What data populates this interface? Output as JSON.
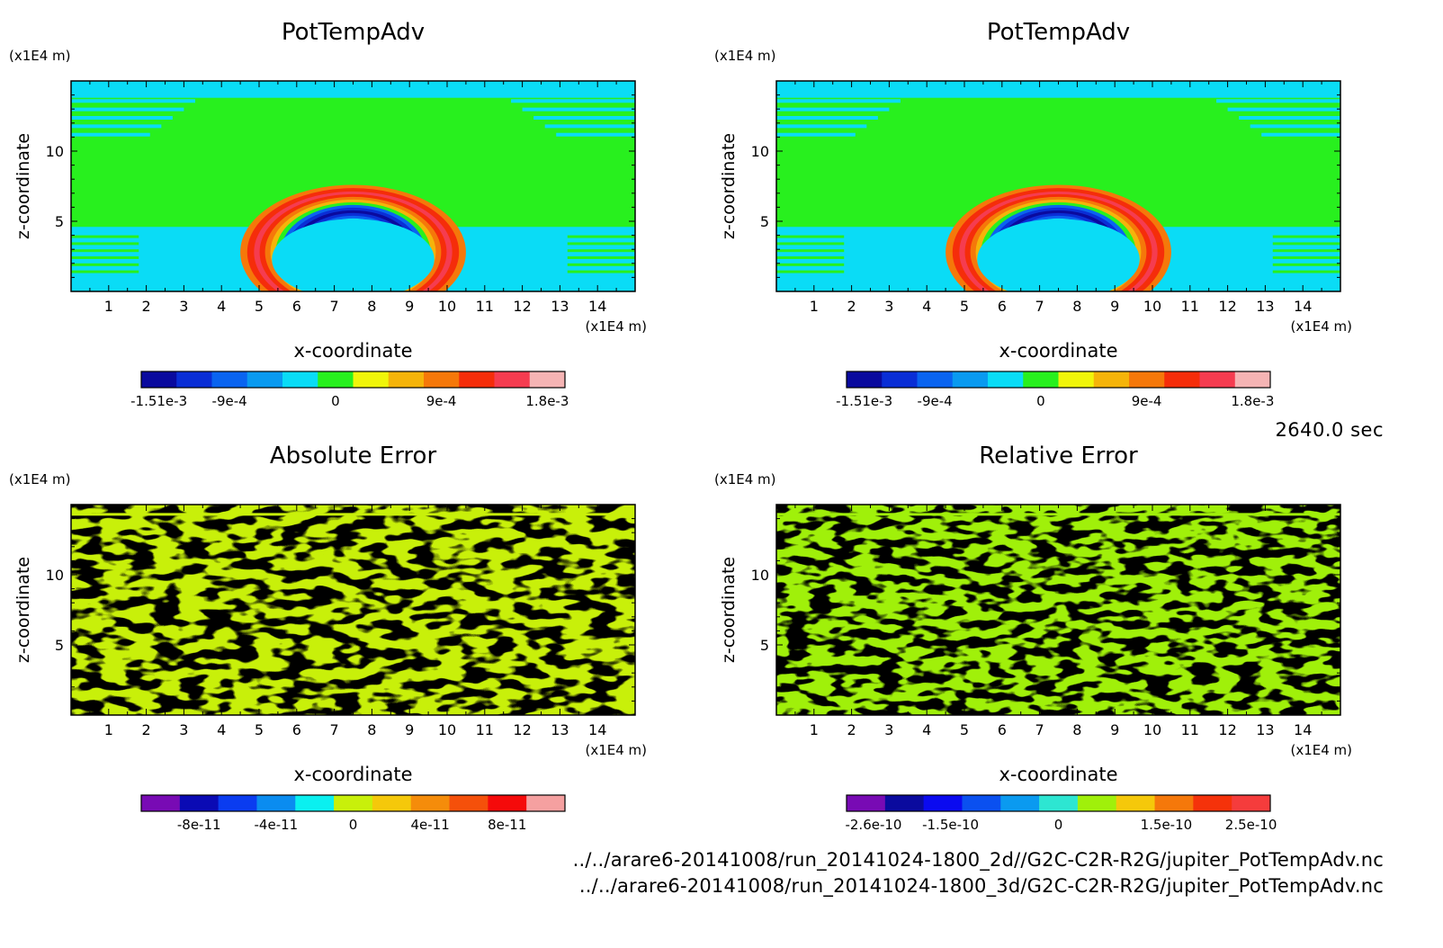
{
  "time_label": "2640.0 sec",
  "file_paths": [
    "../../arare6-20141008/run_20141024-1800_2d//G2C-C2R-R2G/jupiter_PotTempAdv.nc",
    "../../arare6-20141008/run_20141024-1800_3d/G2C-C2R-R2G/jupiter_PotTempAdv.nc"
  ],
  "chart_data": [
    {
      "type": "heatmap",
      "title": "PotTempAdv",
      "xlabel": "x-coordinate",
      "ylabel": "z-coordinate",
      "x_unit": "(x1E4 m)",
      "y_unit": "(x1E4 m)",
      "xlim": [
        0,
        15
      ],
      "ylim": [
        0,
        15
      ],
      "x_ticks": [
        1,
        2,
        3,
        4,
        5,
        6,
        7,
        8,
        9,
        10,
        11,
        12,
        13,
        14
      ],
      "y_ticks": [
        5,
        10
      ],
      "pattern": "arc",
      "colorbar": {
        "colors": [
          "#0a0a9e",
          "#0a2ed6",
          "#0a64f0",
          "#0a9af0",
          "#0adcf6",
          "#28f01e",
          "#f0f50a",
          "#f5b40a",
          "#f5780a",
          "#f52d0a",
          "#f53c50",
          "#f5b4b4"
        ],
        "tick_labels": [
          "-1.51e-3",
          "-9e-4",
          "0",
          "9e-4",
          "1.8e-3"
        ],
        "tick_positions": [
          0,
          2,
          5,
          8,
          11
        ]
      }
    },
    {
      "type": "heatmap",
      "title": "PotTempAdv",
      "xlabel": "x-coordinate",
      "ylabel": "z-coordinate",
      "x_unit": "(x1E4 m)",
      "y_unit": "(x1E4 m)",
      "xlim": [
        0,
        15
      ],
      "ylim": [
        0,
        15
      ],
      "x_ticks": [
        1,
        2,
        3,
        4,
        5,
        6,
        7,
        8,
        9,
        10,
        11,
        12,
        13,
        14
      ],
      "y_ticks": [
        5,
        10
      ],
      "pattern": "arc",
      "colorbar": {
        "colors": [
          "#0a0a9e",
          "#0a2ed6",
          "#0a64f0",
          "#0a9af0",
          "#0adcf6",
          "#28f01e",
          "#f0f50a",
          "#f5b40a",
          "#f5780a",
          "#f52d0a",
          "#f53c50",
          "#f5b4b4"
        ],
        "tick_labels": [
          "-1.51e-3",
          "-9e-4",
          "0",
          "9e-4",
          "1.8e-3"
        ],
        "tick_positions": [
          0,
          2,
          5,
          8,
          11
        ]
      }
    },
    {
      "type": "heatmap",
      "title": "Absolute Error",
      "xlabel": "x-coordinate",
      "ylabel": "z-coordinate",
      "x_unit": "(x1E4 m)",
      "y_unit": "(x1E4 m)",
      "xlim": [
        0,
        15
      ],
      "ylim": [
        0,
        15
      ],
      "x_ticks": [
        1,
        2,
        3,
        4,
        5,
        6,
        7,
        8,
        9,
        10,
        11,
        12,
        13,
        14
      ],
      "y_ticks": [
        5,
        10
      ],
      "pattern": "noise",
      "field_colors": [
        "#0af0f0",
        "#c8f00a"
      ],
      "colorbar": {
        "colors": [
          "#780ab4",
          "#0a0ab4",
          "#0a3cf0",
          "#0a8cf0",
          "#0af0f0",
          "#c8f00a",
          "#f5c80a",
          "#f58c0a",
          "#f5500a",
          "#f50a0a",
          "#f5a0a0"
        ],
        "tick_labels": [
          "-8e-11",
          "-4e-11",
          "0",
          "4e-11",
          "8e-11"
        ],
        "tick_positions": [
          1,
          3,
          5,
          7,
          9
        ]
      }
    },
    {
      "type": "heatmap",
      "title": "Relative Error",
      "xlabel": "x-coordinate",
      "ylabel": "z-coordinate",
      "x_unit": "(x1E4 m)",
      "y_unit": "(x1E4 m)",
      "xlim": [
        0,
        15
      ],
      "ylim": [
        0,
        15
      ],
      "x_ticks": [
        1,
        2,
        3,
        4,
        5,
        6,
        7,
        8,
        9,
        10,
        11,
        12,
        13,
        14
      ],
      "y_ticks": [
        5,
        10
      ],
      "pattern": "noise",
      "field_colors": [
        "#2de6d2",
        "#a0f00a"
      ],
      "colorbar": {
        "colors": [
          "#780ab4",
          "#0a0a9e",
          "#0a0af0",
          "#0a50f0",
          "#0a9af0",
          "#2de6d2",
          "#a0f00a",
          "#f5c80a",
          "#f5780a",
          "#f5320a",
          "#f53c3c"
        ],
        "tick_labels": [
          "-2.6e-10",
          "-1.5e-10",
          "0",
          "1.5e-10",
          "2.5e-10"
        ],
        "tick_positions": [
          0.2,
          2.2,
          5,
          7.8,
          10
        ]
      }
    }
  ]
}
